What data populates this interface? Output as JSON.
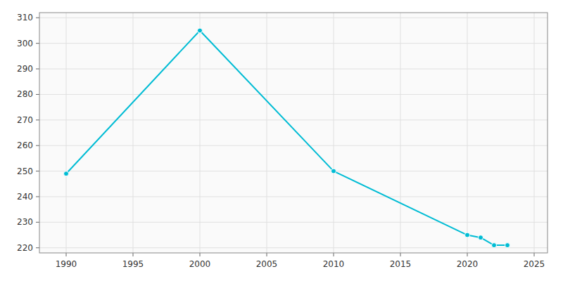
{
  "chart_data": {
    "type": "line",
    "x": [
      1990,
      2000,
      2010,
      2020,
      2021,
      2022,
      2023
    ],
    "values": [
      249,
      305,
      250,
      225,
      224,
      221,
      221
    ],
    "color": "#00bcd4",
    "marker": "circle",
    "xlim": [
      1988,
      2026
    ],
    "ylim": [
      218,
      312
    ],
    "xticks": [
      1990,
      1995,
      2000,
      2005,
      2010,
      2015,
      2020,
      2025
    ],
    "yticks": [
      220,
      230,
      240,
      250,
      260,
      270,
      280,
      290,
      300,
      310
    ],
    "grid": true
  }
}
